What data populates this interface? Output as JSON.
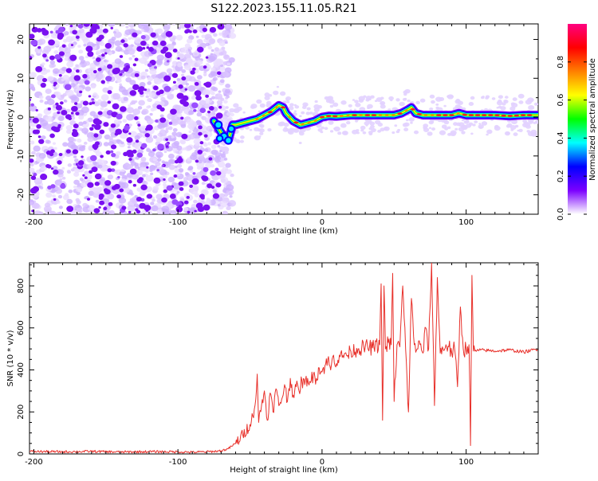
{
  "title": "S122.2023.155.11.05.R21",
  "chart_data": [
    {
      "type": "heatmap",
      "xlabel": "Height of straight line (km)",
      "ylabel": "Frequency (Hz)",
      "xlim": [
        -203,
        150
      ],
      "ylim": [
        -25,
        24
      ],
      "x_ticks": [
        -200,
        -100,
        0,
        100
      ],
      "x_tick_labels": [
        "-200",
        "-100",
        "0",
        "100"
      ],
      "y_ticks": [
        -20,
        -10,
        0,
        10,
        20
      ],
      "y_tick_labels": [
        "-20",
        "-10",
        "0",
        "10",
        "20"
      ],
      "noise_region_x": [
        -203,
        -70
      ],
      "ridge": {
        "x": [
          -75,
          -70,
          -65,
          -62,
          -60,
          -55,
          -50,
          -45,
          -40,
          -35,
          -30,
          -27,
          -25,
          -20,
          -15,
          -10,
          -5,
          0,
          5,
          10,
          20,
          30,
          40,
          50,
          55,
          60,
          62,
          65,
          70,
          80,
          90,
          95,
          100,
          110,
          120,
          130,
          140,
          150
        ],
        "y": [
          -1,
          -4,
          -6,
          -2,
          -2,
          -1.5,
          -1,
          -0.5,
          0.5,
          1.5,
          3,
          2.5,
          1,
          -1,
          -2,
          -1.5,
          -1,
          0,
          0.3,
          0.2,
          0.5,
          0.5,
          0.5,
          0.5,
          1,
          2,
          2.5,
          1,
          0.5,
          0.5,
          0.5,
          1,
          0.5,
          0.5,
          0.5,
          0.3,
          0.5,
          0.5
        ]
      },
      "colorbar": {
        "label": "Normalized spectral amplitude",
        "range": [
          0,
          1
        ],
        "ticks": [
          0.0,
          0.2,
          0.4,
          0.6,
          0.8
        ],
        "tick_labels": [
          "0.0",
          "0.2",
          "0.4",
          "0.6",
          "0.8"
        ],
        "colormap": [
          "#ffffff",
          "#7b00ff",
          "#0000ff",
          "#00ffff",
          "#00ff00",
          "#ffff00",
          "#ff8000",
          "#ff0000",
          "#ff0080"
        ]
      }
    },
    {
      "type": "line",
      "xlabel": "Height of straight line (km)",
      "ylabel": "SNR (10 * v/v)",
      "xlim": [
        -203,
        150
      ],
      "ylim": [
        0,
        910
      ],
      "x_ticks": [
        -200,
        -100,
        0,
        100
      ],
      "x_tick_labels": [
        "-200",
        "-100",
        "0",
        "100"
      ],
      "y_ticks": [
        0,
        200,
        400,
        600,
        800
      ],
      "y_tick_labels": [
        "0",
        "200",
        "400",
        "600",
        "800"
      ],
      "color": "#e8302a",
      "series": [
        {
          "x": [
            -203,
            -180,
            -160,
            -140,
            -120,
            -100,
            -90,
            -80,
            -75,
            -70,
            -65,
            -60,
            -55,
            -50,
            -48,
            -46,
            -45,
            -44,
            -42,
            -40,
            -38,
            -36,
            -34,
            -32,
            -30,
            -28,
            -26,
            -24,
            -22,
            -20,
            -18,
            -16,
            -14,
            -12,
            -10,
            -8,
            -6,
            -4,
            -2,
            0,
            2,
            4,
            6,
            8,
            10,
            12,
            14,
            16,
            18,
            20,
            25,
            30,
            35,
            40,
            41,
            42,
            43,
            44,
            46,
            48,
            49,
            50,
            52,
            54,
            56,
            58,
            60,
            62,
            64,
            66,
            68,
            70,
            72,
            74,
            76,
            78,
            80,
            82,
            84,
            86,
            88,
            90,
            92,
            94,
            96,
            98,
            100,
            102,
            103,
            104,
            105,
            106,
            110,
            120,
            130,
            140,
            150
          ],
          "y": [
            12,
            10,
            12,
            9,
            11,
            10,
            8,
            10,
            12,
            15,
            25,
            50,
            90,
            140,
            180,
            260,
            380,
            150,
            230,
            300,
            160,
            290,
            200,
            310,
            230,
            260,
            330,
            250,
            360,
            280,
            320,
            300,
            350,
            330,
            360,
            340,
            380,
            360,
            410,
            390,
            420,
            450,
            400,
            470,
            430,
            470,
            460,
            480,
            470,
            490,
            500,
            510,
            505,
            520,
            810,
            160,
            800,
            500,
            530,
            520,
            860,
            250,
            520,
            510,
            800,
            500,
            200,
            740,
            520,
            500,
            520,
            480,
            600,
            500,
            910,
            230,
            840,
            480,
            500,
            520,
            510,
            480,
            500,
            320,
            700,
            500,
            500,
            520,
            40,
            850,
            490,
            490,
            495,
            490,
            495,
            485,
            500
          ]
        }
      ]
    }
  ]
}
